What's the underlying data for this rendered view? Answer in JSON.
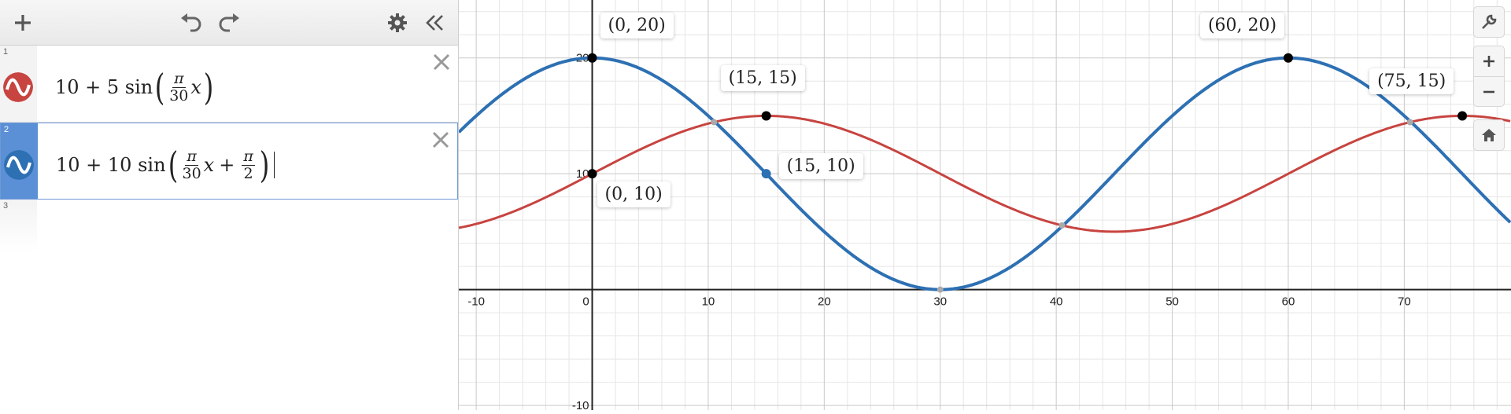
{
  "toolbar": {
    "add_icon": "plus-icon",
    "undo_icon": "undo-icon",
    "redo_icon": "redo-icon",
    "settings_icon": "gear-icon",
    "collapse_icon": "double-chevron-left-icon"
  },
  "expressions": [
    {
      "line": "1",
      "color": "#c74440",
      "prefix": "10 + 5 sin",
      "frac_num": "π",
      "frac_den": "30",
      "var": "x"
    },
    {
      "line": "2",
      "color": "#2d70b3",
      "prefix": "10 + 10 sin",
      "frac_num": "π",
      "frac_den": "30",
      "var": "x",
      "plus": "+",
      "frac2_num": "π",
      "frac2_den": "2"
    },
    {
      "line": "3"
    }
  ],
  "graph": {
    "x_ticks": [
      "-10",
      "0",
      "10",
      "20",
      "30",
      "40",
      "50",
      "60",
      "70"
    ],
    "y_ticks": [
      "20",
      "10",
      "-10"
    ],
    "x_range": [
      -11.5,
      79.2
    ],
    "y_range": [
      -10.4,
      25
    ],
    "grid": true,
    "curves": [
      {
        "color": "#c74440",
        "amplitude": 5,
        "offset": 10,
        "freq": "π/30",
        "phase": 0
      },
      {
        "color": "#2d70b3",
        "amplitude": 10,
        "offset": 10,
        "freq": "π/30",
        "phase": "π/2"
      }
    ],
    "points": [
      {
        "label": "(0, 20)",
        "x": 0,
        "y": 20,
        "color": "#000"
      },
      {
        "label": "(60, 20)",
        "x": 60,
        "y": 20,
        "color": "#000"
      },
      {
        "label": "(15, 15)",
        "x": 15,
        "y": 15,
        "color": "#000"
      },
      {
        "label": "(75, 15)",
        "x": 75,
        "y": 15,
        "color": "#000"
      },
      {
        "label": "(15, 10)",
        "x": 15,
        "y": 10,
        "color": "#2d70b3"
      },
      {
        "label": "(0, 10)",
        "x": 0,
        "y": 10,
        "color": "#000"
      }
    ]
  },
  "side_controls": {
    "wrench_icon": "wrench-icon",
    "zoom_in_icon": "plus-icon",
    "zoom_out_icon": "minus-icon",
    "home_icon": "home-icon"
  }
}
